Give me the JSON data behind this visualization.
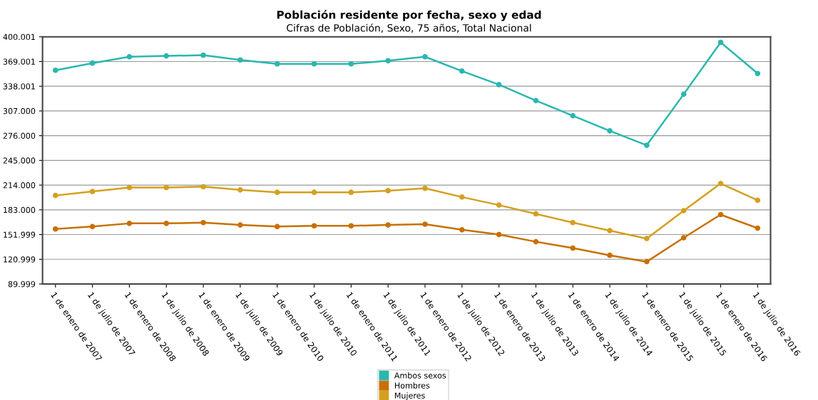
{
  "chart_data": {
    "type": "line",
    "title": "Población residente por fecha, sexo y edad",
    "subtitle": "Cifras de Población, Sexo, 75 años, Total Nacional",
    "categories": [
      "1 de enero de 2007",
      "1 de julio de 2007",
      "1 de enero de 2008",
      "1 de julio de 2008",
      "1 de enero de 2009",
      "1 de julio de 2009",
      "1 de enero de 2010",
      "1 de julio de 2010",
      "1 de enero de 2011",
      "1 de julio de 2011",
      "1 de enero de 2012",
      "1 de julio de 2012",
      "1 de enero de 2013",
      "1 de julio de 2013",
      "1 de enero de 2014",
      "1 de julio de 2014",
      "1 de enero de 2015",
      "1 de julio de 2015",
      "1 de enero de 2016",
      "1 de julio de 2016"
    ],
    "series": [
      {
        "name": "Ambos sexos",
        "color": "#2ab7b0",
        "values": [
          358000,
          367000,
          375000,
          376000,
          377000,
          371000,
          366000,
          366000,
          366000,
          370000,
          375000,
          357000,
          340000,
          320000,
          301000,
          282000,
          264000,
          328000,
          393000,
          354000
        ]
      },
      {
        "name": "Hombres",
        "color": "#c87000",
        "values": [
          159000,
          162000,
          166000,
          166000,
          167000,
          164000,
          162000,
          163000,
          163000,
          164000,
          165000,
          158000,
          152000,
          143000,
          135000,
          126000,
          118000,
          148000,
          177000,
          160000
        ]
      },
      {
        "name": "Mujeres",
        "color": "#d4a020",
        "values": [
          201000,
          206000,
          211000,
          211000,
          212000,
          208000,
          205000,
          205000,
          205000,
          207000,
          210000,
          199000,
          189000,
          178000,
          167000,
          157000,
          147000,
          182000,
          216000,
          195000
        ]
      }
    ],
    "ylim": [
      89999,
      400001
    ],
    "yticks": [
      {
        "value": 89999,
        "label": "89.999"
      },
      {
        "value": 120999,
        "label": "120.999"
      },
      {
        "value": 151999,
        "label": "151.999"
      },
      {
        "value": 183000,
        "label": "183.000"
      },
      {
        "value": 214000,
        "label": "214.000"
      },
      {
        "value": 245000,
        "label": "245.000"
      },
      {
        "value": 276000,
        "label": "276.000"
      },
      {
        "value": 307000,
        "label": "307.000"
      },
      {
        "value": 338001,
        "label": "338.001"
      },
      {
        "value": 369001,
        "label": "369.001"
      },
      {
        "value": 400001,
        "label": "400.001"
      }
    ],
    "grid": "y",
    "legend": "bottom",
    "marker": "circle",
    "line_style": "solid"
  }
}
